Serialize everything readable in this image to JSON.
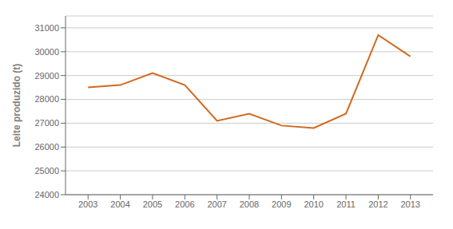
{
  "chart_data": {
    "type": "line",
    "ylabel": "Leite produzido (t)",
    "x": [
      2003,
      2004,
      2005,
      2006,
      2007,
      2008,
      2009,
      2010,
      2011,
      2012,
      2013
    ],
    "values": [
      28500,
      28600,
      29100,
      28600,
      27100,
      27400,
      26900,
      26800,
      27400,
      30700,
      29800
    ],
    "color": "#D2691E",
    "xlim": [
      2002.3,
      2013.7
    ],
    "xticks": [
      2003,
      2004,
      2005,
      2006,
      2007,
      2008,
      2009,
      2010,
      2011,
      2012,
      2013
    ],
    "ylim": [
      24000,
      31500
    ],
    "yticks": [
      24000,
      25000,
      26000,
      27000,
      28000,
      29000,
      30000,
      31000
    ],
    "grid": true
  }
}
